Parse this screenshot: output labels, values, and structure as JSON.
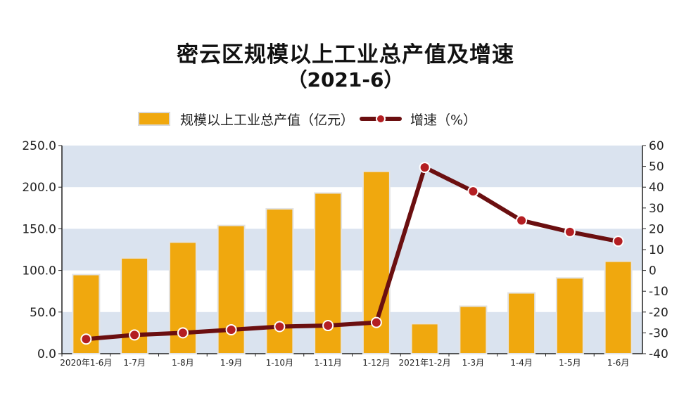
{
  "header": {
    "title": "密云区规模以上工业总产值及增速",
    "subtitle": "（2021-6）"
  },
  "legend": {
    "bar_label": "规模以上工业总产值（亿元）",
    "line_label": "增速（%）"
  },
  "colors": {
    "bar": "#f0a80e",
    "line": "#6b0f10",
    "marker": "#b41e22",
    "band": "#dae3ef"
  },
  "chart_data": {
    "type": "bar",
    "categories": [
      "2020年1-6月",
      "1-7月",
      "1-8月",
      "1-9月",
      "1-10月",
      "1-11月",
      "1-12月",
      "2021年1-2月",
      "1-3月",
      "1-4月",
      "1-5月",
      "1-6月"
    ],
    "series": [
      {
        "name": "规模以上工业总产值（亿元）",
        "type": "bar",
        "axis": "left",
        "values": [
          95,
          115,
          134,
          154,
          174,
          193,
          219,
          36,
          57,
          73,
          91,
          111
        ]
      },
      {
        "name": "增速（%）",
        "type": "line",
        "axis": "right",
        "values": [
          -33,
          -31,
          -30,
          -28.5,
          -27,
          -26.5,
          -25,
          49.5,
          38,
          24,
          18.5,
          14
        ]
      }
    ],
    "y_left": {
      "ylim": [
        0,
        250
      ],
      "ticks": [
        "0.0",
        "50.0",
        "100.0",
        "150.0",
        "200.0",
        "250.0"
      ]
    },
    "y_right": {
      "ylim": [
        -40,
        60
      ],
      "ticks": [
        "-40",
        "-30",
        "-20",
        "-10",
        "0",
        "10",
        "20",
        "30",
        "40",
        "50",
        "60"
      ]
    },
    "grid": "alternating horizontal bands",
    "legend_position": "top"
  }
}
